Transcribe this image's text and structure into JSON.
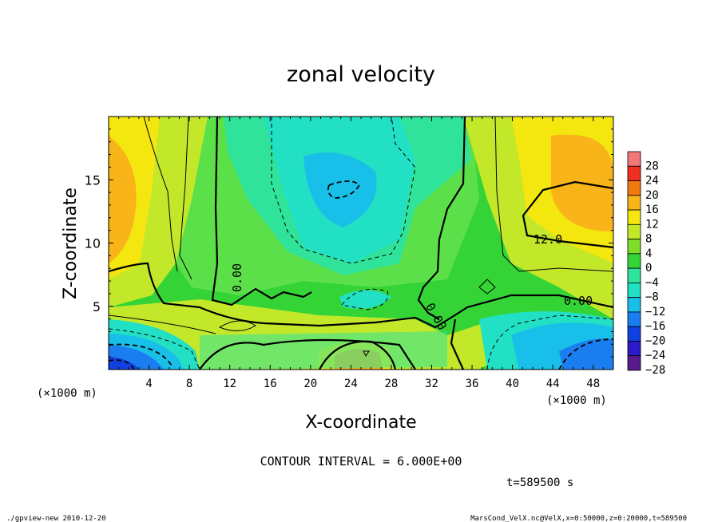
{
  "chart_data": {
    "type": "heatmap",
    "title": "zonal velocity",
    "xlabel": "X-coordinate",
    "ylabel": "Z-coordinate",
    "x_unit": "(×1000 m)",
    "y_unit": "(×1000 m)",
    "xlim": [
      0,
      50
    ],
    "ylim": [
      0,
      20
    ],
    "x_ticks": [
      4,
      8,
      12,
      16,
      20,
      24,
      28,
      32,
      36,
      40,
      44,
      48
    ],
    "y_ticks": [
      5,
      10,
      15
    ],
    "colorbar": {
      "levels": [
        -28,
        -24,
        -20,
        -16,
        -12,
        -8,
        -4,
        0,
        4,
        8,
        12,
        16,
        20,
        24,
        28
      ],
      "labels": [
        "28",
        "24",
        "20",
        "16",
        "12",
        "8",
        "4",
        "0",
        "−4",
        "−8",
        "−12",
        "−16",
        "−20",
        "−24",
        "−28"
      ],
      "colors": [
        "#5a1a8c",
        "#2a1ac8",
        "#1040e0",
        "#1a7ef0",
        "#18bfe8",
        "#22e0c4",
        "#30e39a",
        "#34d436",
        "#7fdc2a",
        "#c3e82a",
        "#f4e60f",
        "#f8b418",
        "#f07a10",
        "#f0301e",
        "#f07878"
      ]
    },
    "contour_interval": "CONTOUR INTERVAL = 6.000E+00",
    "contour_labels": [
      "12.0",
      "0.00",
      "0.00",
      "0.00"
    ],
    "grid": false,
    "field_samples": {
      "note_x": [
        0,
        5,
        10,
        15,
        20,
        25,
        30,
        35,
        40,
        45,
        50
      ],
      "note_z": [
        0,
        5,
        10,
        15,
        20
      ],
      "values": [
        [
          -22,
          -8,
          -2,
          0,
          2,
          10,
          -2,
          -6,
          -8,
          -14,
          -20
        ],
        [
          6,
          6,
          2,
          0,
          0,
          -6,
          0,
          -2,
          0,
          2,
          4
        ],
        [
          14,
          10,
          6,
          2,
          -2,
          -6,
          -4,
          2,
          6,
          12,
          14
        ],
        [
          14,
          6,
          4,
          0,
          -6,
          -10,
          -6,
          2,
          6,
          14,
          16
        ],
        [
          12,
          6,
          4,
          0,
          -4,
          -6,
          -4,
          4,
          6,
          10,
          12
        ]
      ]
    }
  },
  "footer": {
    "time": "t=589500 s",
    "left": "./gpview-new   2010-12-20",
    "right": "MarsCond_VelX.nc@VelX,x=0:50000,z=0:20000,t=589500"
  }
}
